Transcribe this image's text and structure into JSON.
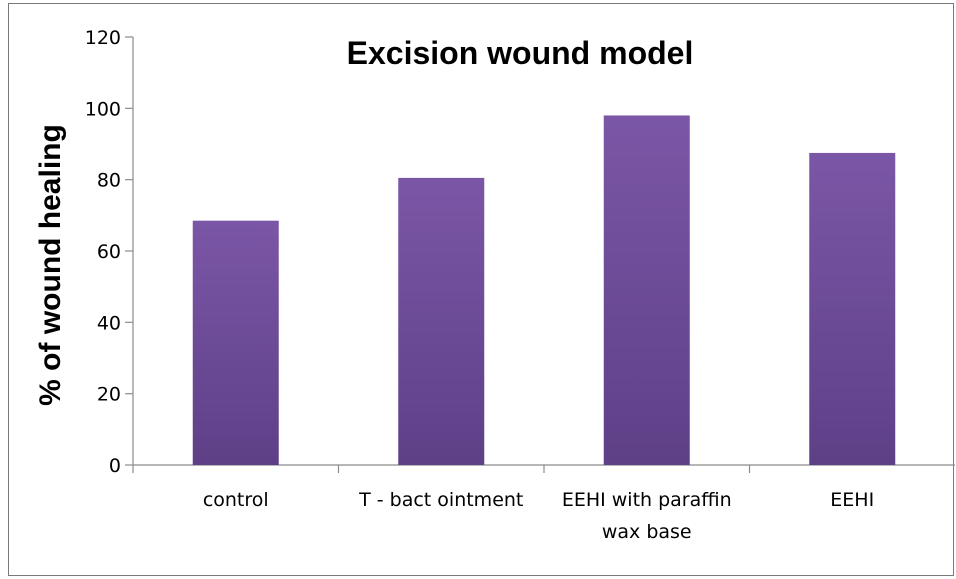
{
  "chart_data": {
    "type": "bar",
    "title": "Excision wound model",
    "xlabel": "",
    "ylabel": "% of wound healing",
    "categories": [
      "control",
      "T - bact ointment",
      "EEHI with paraffin wax base",
      "EEHI"
    ],
    "category_lines": [
      [
        "control"
      ],
      [
        "T - bact ointment"
      ],
      [
        "EEHI with paraffin",
        "wax base"
      ],
      [
        "EEHI"
      ]
    ],
    "values": [
      68.5,
      80.5,
      98,
      87.5
    ],
    "ylim": [
      0,
      120
    ],
    "yticks": [
      0,
      20,
      40,
      60,
      80,
      100,
      120
    ],
    "ytick_labels": [
      "0",
      "20",
      "40",
      "60",
      "80",
      "100",
      "120"
    ],
    "bar_color": "#7b56a6",
    "bar_color_dark": "#5e4087",
    "grid": false,
    "legend": "none"
  }
}
